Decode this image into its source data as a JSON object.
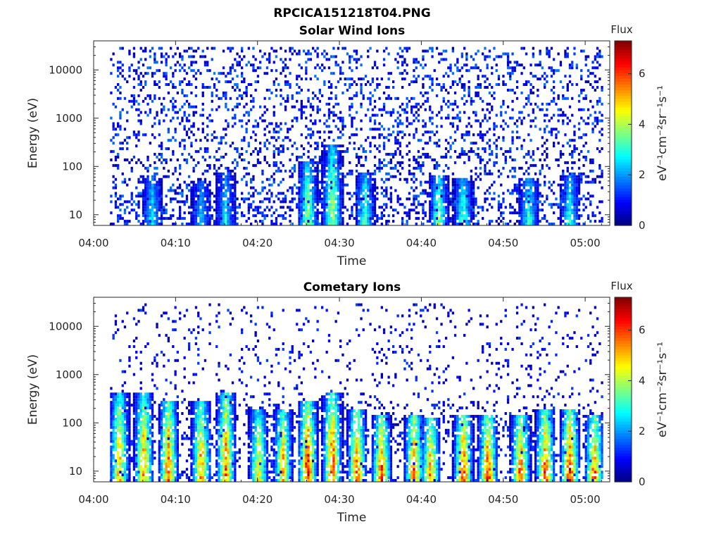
{
  "figure_title": "RPCICA151218T04.PNG",
  "chart_data": [
    {
      "type": "heatmap",
      "title": "Solar Wind Ions",
      "xlabel": "Time",
      "ylabel": "Energy (eV)",
      "x_ticks": [
        "04:00",
        "04:10",
        "04:20",
        "04:30",
        "04:40",
        "04:50",
        "05:00"
      ],
      "xlim": [
        "04:00",
        "05:03"
      ],
      "y_ticks": [
        "10",
        "100",
        "1000",
        "10000"
      ],
      "yscale": "log",
      "ylim": [
        6,
        40000
      ],
      "colorbar": {
        "label": "Flux",
        "unit_label": "eV⁻¹cm⁻²sr⁻¹s⁻¹",
        "ticks": [
          "0",
          "2",
          "4",
          "6"
        ],
        "range": [
          0,
          7.3
        ],
        "colormap": "jet"
      },
      "data_start": "04:02",
      "data_end": "05:02",
      "description_of_values": "sparse low flux (0-2) across 10-30000 eV; moderate flux (2-5) streaks below 100 eV",
      "bursts": [
        {
          "time": "04:07",
          "peak_flux": 3.5,
          "top_energy": 60
        },
        {
          "time": "04:13",
          "peak_flux": 3.0,
          "top_energy": 50
        },
        {
          "time": "04:16",
          "peak_flux": 3.2,
          "top_energy": 80
        },
        {
          "time": "04:26",
          "peak_flux": 4.6,
          "top_energy": 120
        },
        {
          "time": "04:29",
          "peak_flux": 4.5,
          "top_energy": 300
        },
        {
          "time": "04:33",
          "peak_flux": 4.0,
          "top_energy": 80
        },
        {
          "time": "04:42",
          "peak_flux": 4.5,
          "top_energy": 70
        },
        {
          "time": "04:45",
          "peak_flux": 4.2,
          "top_energy": 60
        },
        {
          "time": "04:53",
          "peak_flux": 4.0,
          "top_energy": 60
        },
        {
          "time": "04:58",
          "peak_flux": 3.8,
          "top_energy": 70
        }
      ]
    },
    {
      "type": "heatmap",
      "title": "Cometary Ions",
      "xlabel": "Time",
      "ylabel": "Energy (eV)",
      "x_ticks": [
        "04:00",
        "04:10",
        "04:20",
        "04:30",
        "04:40",
        "04:50",
        "05:00"
      ],
      "xlim": [
        "04:00",
        "05:03"
      ],
      "y_ticks": [
        "10",
        "100",
        "1000",
        "10000"
      ],
      "yscale": "log",
      "ylim": [
        6,
        40000
      ],
      "colorbar": {
        "label": "Flux",
        "unit_label": "eV⁻¹cm⁻²sr⁻¹s⁻¹",
        "ticks": [
          "0",
          "2",
          "4",
          "6"
        ],
        "range": [
          0,
          7.3
        ],
        "colormap": "jet"
      },
      "data_start": "04:02",
      "data_end": "05:02",
      "description_of_values": "sparse low flux above 300 eV; strong flux (4-7) bursts between 6 and 400 eV, peaking near 20-40 eV",
      "bursts": [
        {
          "time": "04:03",
          "peak_flux": 5.5,
          "top_energy": 400
        },
        {
          "time": "04:06",
          "peak_flux": 5.8,
          "top_energy": 400
        },
        {
          "time": "04:09",
          "peak_flux": 6.2,
          "top_energy": 300
        },
        {
          "time": "04:13",
          "peak_flux": 5.8,
          "top_energy": 300
        },
        {
          "time": "04:16",
          "peak_flux": 6.0,
          "top_energy": 400
        },
        {
          "time": "04:20",
          "peak_flux": 5.2,
          "top_energy": 200
        },
        {
          "time": "04:23",
          "peak_flux": 5.6,
          "top_energy": 200
        },
        {
          "time": "04:26",
          "peak_flux": 6.8,
          "top_energy": 300
        },
        {
          "time": "04:29",
          "peak_flux": 6.5,
          "top_energy": 400
        },
        {
          "time": "04:32",
          "peak_flux": 6.4,
          "top_energy": 200
        },
        {
          "time": "04:35",
          "peak_flux": 6.6,
          "top_energy": 150
        },
        {
          "time": "04:39",
          "peak_flux": 6.6,
          "top_energy": 150
        },
        {
          "time": "04:41",
          "peak_flux": 6.3,
          "top_energy": 120
        },
        {
          "time": "04:45",
          "peak_flux": 7.0,
          "top_energy": 150
        },
        {
          "time": "04:48",
          "peak_flux": 6.8,
          "top_energy": 150
        },
        {
          "time": "04:52",
          "peak_flux": 6.5,
          "top_energy": 150
        },
        {
          "time": "04:55",
          "peak_flux": 6.6,
          "top_energy": 200
        },
        {
          "time": "04:58",
          "peak_flux": 6.8,
          "top_energy": 200
        },
        {
          "time": "05:01",
          "peak_flux": 6.4,
          "top_energy": 150
        }
      ]
    }
  ]
}
